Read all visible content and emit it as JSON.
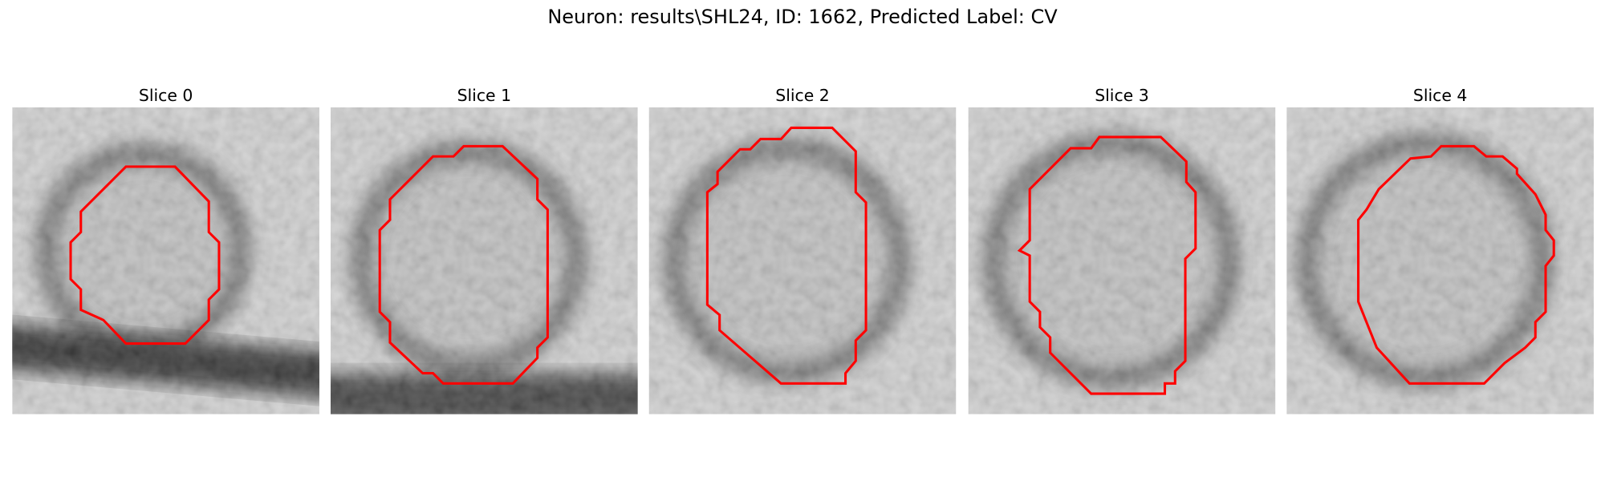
{
  "figure": {
    "title": "Neuron: results\\SHL24, ID: 1662, Predicted Label: CV",
    "panels": [
      {
        "title": "Slice 0"
      },
      {
        "title": "Slice 1"
      },
      {
        "title": "Slice 2"
      },
      {
        "title": "Slice 3"
      },
      {
        "title": "Slice 4"
      }
    ]
  }
}
